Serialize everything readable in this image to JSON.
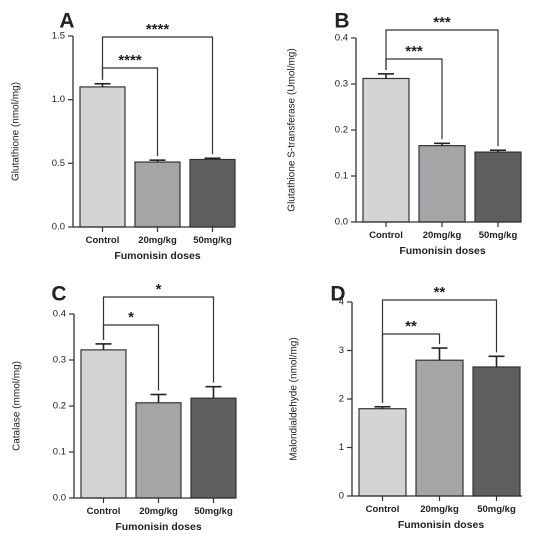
{
  "figure": {
    "colors": {
      "control": "#d4d4d4",
      "dose20": "#a5a5a8",
      "dose50": "#5f5f5f",
      "axis": "#333333",
      "bracket": "#333333"
    }
  },
  "chart_data": [
    {
      "type": "bar",
      "panel_label": "A",
      "categories": [
        "Control",
        "20mg/kg",
        "50mg/kg"
      ],
      "values": [
        1.1,
        0.51,
        0.53
      ],
      "errors": [
        0.025,
        0.015,
        0.01
      ],
      "xlabel": "Fumonisin doses",
      "ylabel": "Glutathione (nmol/mg)",
      "ylim": [
        0,
        1.5
      ],
      "yticks": [
        0.0,
        0.5,
        1.0,
        1.5
      ],
      "yticklabels": [
        "0.0",
        "0.5",
        "1.0",
        "1.5"
      ],
      "significance": [
        {
          "from": "Control",
          "to": "20mg/kg",
          "label": "****"
        },
        {
          "from": "Control",
          "to": "50mg/kg",
          "label": "****"
        }
      ]
    },
    {
      "type": "bar",
      "panel_label": "B",
      "categories": [
        "Control",
        "20mg/kg",
        "50mg/kg"
      ],
      "values": [
        0.312,
        0.166,
        0.152
      ],
      "errors": [
        0.01,
        0.005,
        0.004
      ],
      "xlabel": "Fumonisin doses",
      "ylabel": "Glutathione S-transferase (Umol/mg)",
      "ylim": [
        0,
        0.4
      ],
      "yticks": [
        0.0,
        0.1,
        0.2,
        0.3,
        0.4
      ],
      "yticklabels": [
        "0.0",
        "0.1",
        "0.2",
        "0.3",
        "0.4"
      ],
      "significance": [
        {
          "from": "Control",
          "to": "20mg/kg",
          "label": "***"
        },
        {
          "from": "Control",
          "to": "50mg/kg",
          "label": "***"
        }
      ]
    },
    {
      "type": "bar",
      "panel_label": "C",
      "categories": [
        "Control",
        "20mg/kg",
        "50mg/kg"
      ],
      "values": [
        0.322,
        0.207,
        0.217
      ],
      "errors": [
        0.013,
        0.018,
        0.025
      ],
      "xlabel": "Fumonisin doses",
      "ylabel": "Catalase (mmol/mg)",
      "ylim": [
        0,
        0.4
      ],
      "yticks": [
        0.0,
        0.1,
        0.2,
        0.3,
        0.4
      ],
      "yticklabels": [
        "0.0",
        "0.1",
        "0.2",
        "0.3",
        "0.4"
      ],
      "significance": [
        {
          "from": "Control",
          "to": "20mg/kg",
          "label": "*"
        },
        {
          "from": "Control",
          "to": "50mg/kg",
          "label": "*"
        }
      ]
    },
    {
      "type": "bar",
      "panel_label": "D",
      "categories": [
        "Control",
        "20mg/kg",
        "50mg/kg"
      ],
      "values": [
        1.8,
        2.8,
        2.66
      ],
      "errors": [
        0.04,
        0.25,
        0.22
      ],
      "xlabel": "Fumonisin doses",
      "ylabel": "Malondialdehyde (nmol/mg)",
      "ylim": [
        0,
        4
      ],
      "yticks": [
        0,
        1,
        2,
        3,
        4
      ],
      "yticklabels": [
        "0",
        "1",
        "2",
        "3",
        "4"
      ],
      "significance": [
        {
          "from": "Control",
          "to": "20mg/kg",
          "label": "**"
        },
        {
          "from": "Control",
          "to": "50mg/kg",
          "label": "**"
        }
      ]
    }
  ]
}
